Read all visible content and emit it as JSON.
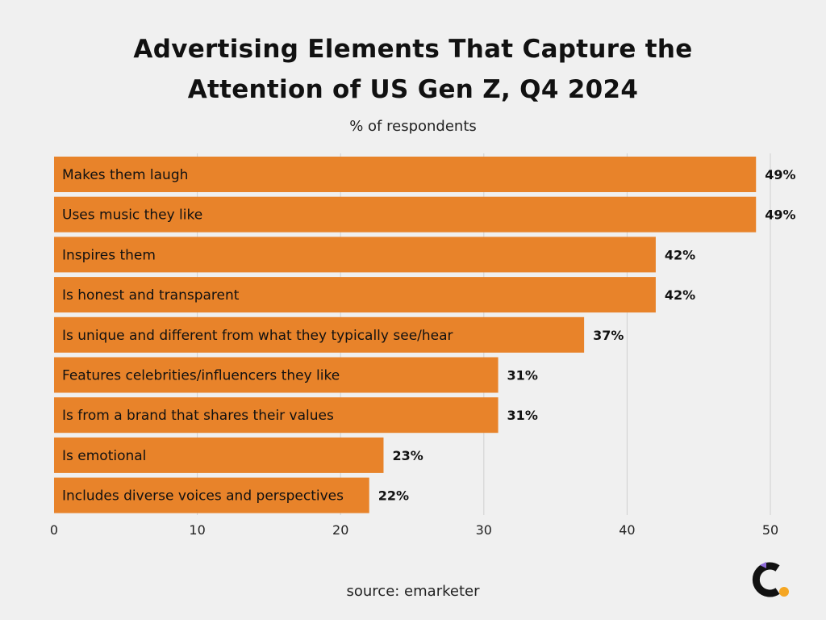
{
  "title_line1": "Advertising Elements That Capture the",
  "title_line2": "Attention of US Gen Z, Q4 2024",
  "subtitle": "% of respondents",
  "source": "source: emarketer",
  "colors": {
    "bar": "#e8832a",
    "grid": "#d0d0d0",
    "background": "#f0f0f0",
    "text": "#111111"
  },
  "chart_data": {
    "type": "bar",
    "orientation": "horizontal",
    "title": "Advertising Elements That Capture the Attention of US Gen Z, Q4 2024",
    "subtitle": "% of respondents",
    "categories": [
      "Makes them laugh",
      "Uses music they like",
      "Inspires them",
      "Is honest and transparent",
      "Is unique and different from what they typically see/hear",
      "Features celebrities/influencers they like",
      "Is from a brand that shares their values",
      "Is emotional",
      "Includes diverse voices and perspectives"
    ],
    "values": [
      49,
      49,
      42,
      42,
      37,
      31,
      31,
      23,
      22
    ],
    "value_labels": [
      "49%",
      "49%",
      "42%",
      "42%",
      "37%",
      "31%",
      "31%",
      "23%",
      "22%"
    ],
    "xlim": [
      0,
      50
    ],
    "xticks": [
      0,
      10,
      20,
      30,
      40,
      50
    ],
    "grid": true
  }
}
